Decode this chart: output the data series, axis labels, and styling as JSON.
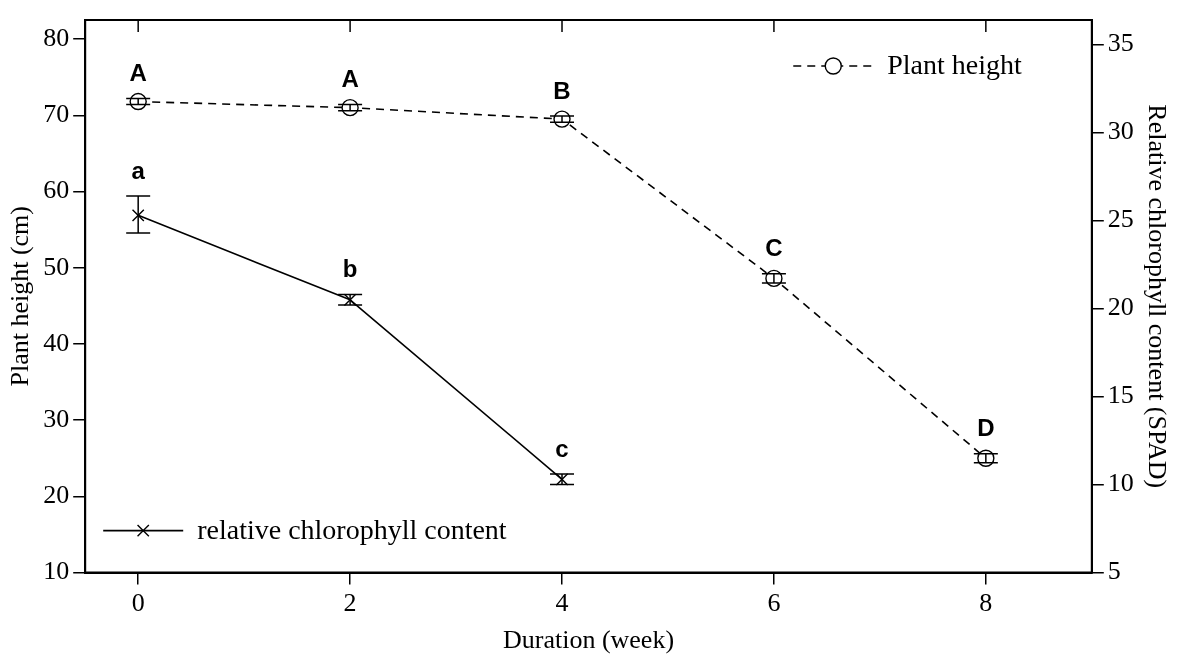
{
  "chart_data": {
    "type": "line",
    "xlabel": "Duration (week)",
    "ylabel": "Plant height (cm)",
    "y2label": "Relative chlorophyll content (SPAD)",
    "x": [
      0,
      2,
      4,
      6,
      8
    ],
    "series": [
      {
        "name": "Plant height",
        "color": "#000000",
        "marker": "circle",
        "line_style": "dashed",
        "values": [
          71.8,
          71.0,
          69.5,
          48.6,
          25.0
        ],
        "errors": [
          0.4,
          0.4,
          0.4,
          0.6,
          0.6
        ]
      },
      {
        "name": "relative chlorophyll content",
        "color": "#000000",
        "marker": "cross",
        "line_style": "solid",
        "axis": "y2",
        "x": [
          0,
          2,
          4
        ],
        "values": [
          25.3,
          20.5,
          10.3
        ],
        "errors": [
          [
            24.3,
            26.4
          ],
          0.3,
          0.3
        ]
      }
    ],
    "xlim": [
      -0.5,
      9
    ],
    "xticks": [
      0,
      2,
      4,
      6,
      8
    ],
    "ylim": [
      10,
      82.5
    ],
    "yticks": [
      10,
      20,
      30,
      40,
      50,
      60,
      70,
      80
    ],
    "y2lim": [
      5,
      36.4
    ],
    "y2ticks": [
      5,
      10,
      15,
      20,
      25,
      30,
      35
    ],
    "grid": false,
    "legend": "bottom left",
    "annotations": [
      {
        "text": "A",
        "x": 0,
        "y": 71.8
      },
      {
        "text": "A",
        "x": 2,
        "y": 71.0
      },
      {
        "text": "B",
        "x": 4,
        "y": 69.5
      },
      {
        "text": "C",
        "x": 6,
        "y": 48.6
      },
      {
        "text": "D",
        "x": 8,
        "y": 25.0
      },
      "a",
      "b",
      "c"
    ]
  }
}
